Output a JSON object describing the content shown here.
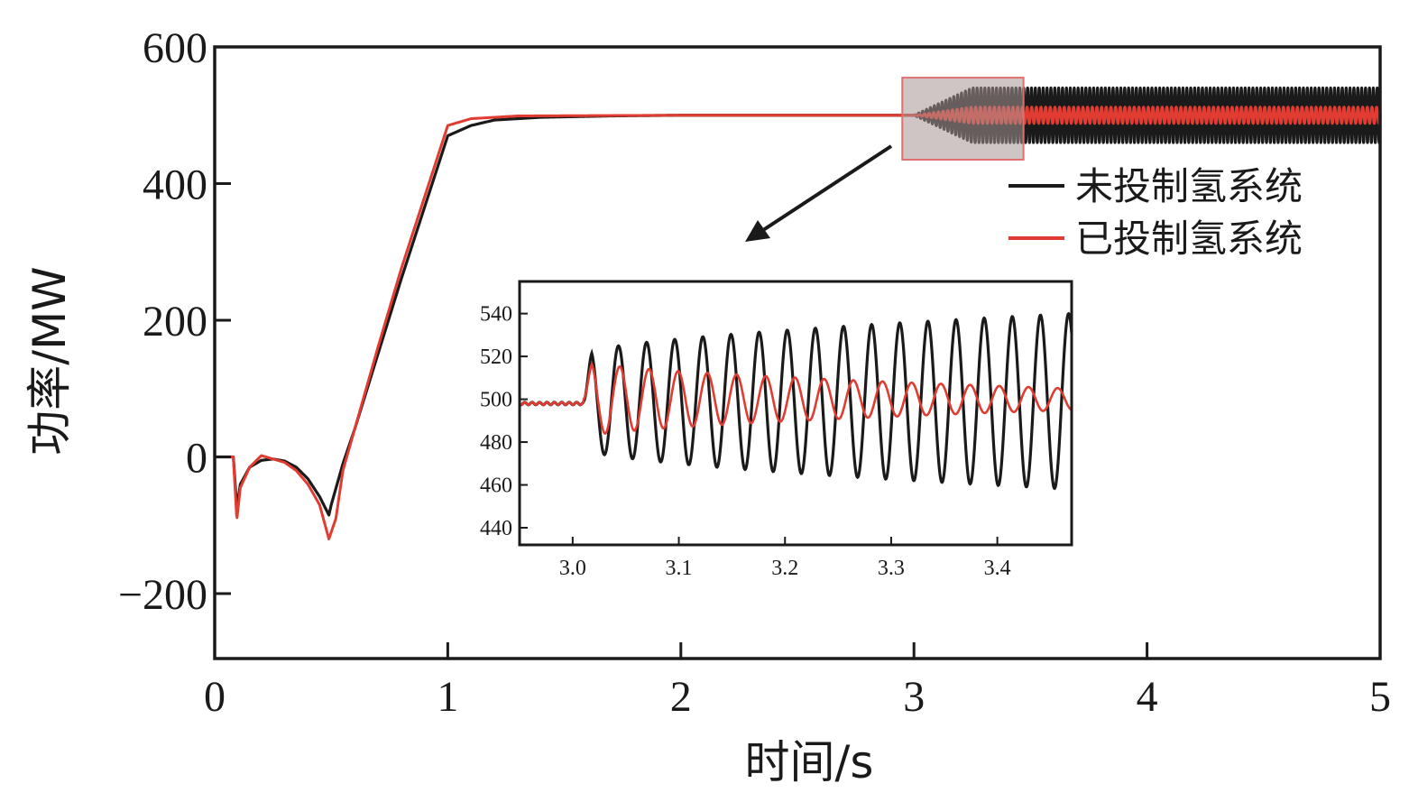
{
  "chart_data": {
    "type": "line",
    "main": {
      "xlabel": "时间/s",
      "ylabel": "功率/MW",
      "xlim": [
        0,
        5
      ],
      "ylim": [
        -295,
        600
      ],
      "xticks": [
        0,
        1,
        2,
        3,
        4,
        5
      ],
      "xtick_labels": [
        "0",
        "1",
        "2",
        "3",
        "4",
        "5"
      ],
      "yticks": [
        -200,
        0,
        200,
        400,
        600
      ],
      "ytick_labels": [
        "−200",
        "0",
        "200",
        "400",
        "600"
      ],
      "series": [
        {
          "name": "未投制氢系统",
          "color": "#1a1a1a",
          "points": [
            [
              0.0,
              0
            ],
            [
              0.08,
              0
            ],
            [
              0.095,
              -75
            ],
            [
              0.11,
              -40
            ],
            [
              0.15,
              -15
            ],
            [
              0.2,
              -5
            ],
            [
              0.25,
              -3
            ],
            [
              0.3,
              -6
            ],
            [
              0.35,
              -15
            ],
            [
              0.4,
              -32
            ],
            [
              0.45,
              -58
            ],
            [
              0.49,
              -85
            ],
            [
              0.5,
              -70
            ],
            [
              0.55,
              -10
            ],
            [
              0.6,
              40
            ],
            [
              0.7,
              150
            ],
            [
              0.8,
              260
            ],
            [
              0.9,
              365
            ],
            [
              1.0,
              470
            ],
            [
              1.1,
              485
            ],
            [
              1.2,
              493
            ],
            [
              1.4,
              497
            ],
            [
              1.7,
              499
            ],
            [
              2.0,
              500
            ],
            [
              3.0,
              500
            ]
          ],
          "oscillation": {
            "start": 3.0,
            "end": 5.0,
            "center": 500,
            "amplitude_max": 40,
            "frequency_hz": 60
          }
        },
        {
          "name": "已投制氢系统",
          "color": "#e03c31",
          "points": [
            [
              0.0,
              0
            ],
            [
              0.08,
              0
            ],
            [
              0.095,
              -92
            ],
            [
              0.11,
              -45
            ],
            [
              0.15,
              -15
            ],
            [
              0.2,
              2
            ],
            [
              0.25,
              -3
            ],
            [
              0.3,
              -8
            ],
            [
              0.35,
              -20
            ],
            [
              0.4,
              -40
            ],
            [
              0.45,
              -70
            ],
            [
              0.49,
              -120
            ],
            [
              0.52,
              -90
            ],
            [
              0.55,
              -20
            ],
            [
              0.6,
              40
            ],
            [
              0.7,
              160
            ],
            [
              0.8,
              275
            ],
            [
              0.9,
              380
            ],
            [
              1.0,
              485
            ],
            [
              1.1,
              495
            ],
            [
              1.3,
              499
            ],
            [
              2.0,
              500
            ],
            [
              3.0,
              500
            ]
          ],
          "oscillation": {
            "start": 3.0,
            "end": 5.0,
            "center": 500,
            "amplitude_max": 12,
            "frequency_hz": 50
          }
        }
      ],
      "zoom_box": {
        "x": [
          2.95,
          3.47
        ],
        "y": [
          435,
          555
        ]
      }
    },
    "inset": {
      "xlim": [
        2.95,
        3.47
      ],
      "ylim": [
        432,
        555
      ],
      "xticks": [
        3.0,
        3.1,
        3.2,
        3.3,
        3.4
      ],
      "xtick_labels": [
        "3.0",
        "3.1",
        "3.2",
        "3.3",
        "3.4"
      ],
      "yticks": [
        440,
        460,
        480,
        500,
        520,
        540
      ],
      "ytick_labels": [
        "440",
        "460",
        "480",
        "500",
        "520",
        "540"
      ],
      "series": [
        {
          "name": "未投制氢系统",
          "color": "#1a1a1a",
          "baseline": 498,
          "start": 3.01,
          "center": 499,
          "amplitude_start": 22,
          "amplitude_end": 41,
          "period": 0.0265
        },
        {
          "name": "已投制氢系统",
          "color": "#e03c31",
          "baseline": 498,
          "start": 3.01,
          "center": 500,
          "amplitude_start": 18,
          "amplitude_end": 5,
          "period": 0.0275
        }
      ]
    },
    "legend": {
      "position": "top-right",
      "entries": [
        "未投制氢系统",
        "已投制氢系统"
      ]
    },
    "grid": false
  }
}
